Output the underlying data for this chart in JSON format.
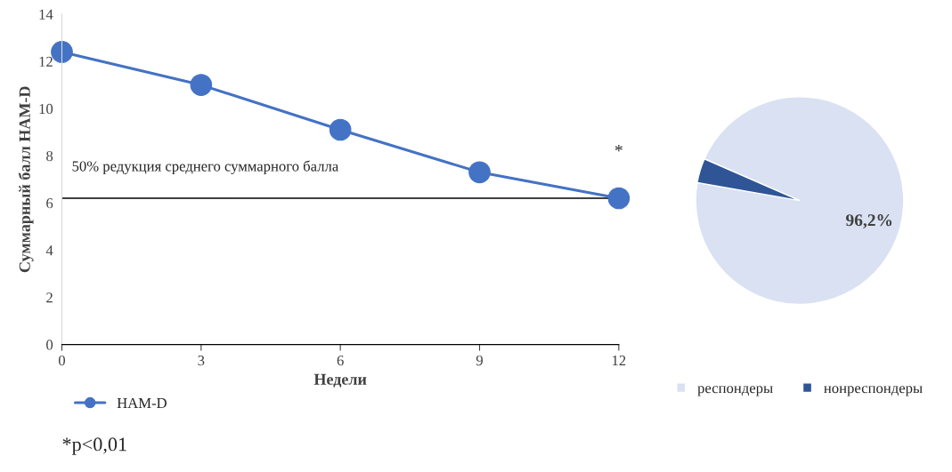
{
  "chart_data": [
    {
      "type": "line",
      "x": [
        0,
        3,
        6,
        9,
        12
      ],
      "xlabel": "Недели",
      "ylabel": "Суммарный балл HAM-D",
      "xlim": [
        0,
        12
      ],
      "xticks": [
        0,
        3,
        6,
        9,
        12
      ],
      "ylim": [
        0,
        14
      ],
      "yticks": [
        0,
        2,
        4,
        6,
        8,
        10,
        12,
        14
      ],
      "grid": false,
      "legend": "bottom left",
      "marker": "circle",
      "line_style": "solid",
      "series": [
        {
          "name": "HAM-D",
          "color": "#4472c4",
          "values": [
            12.4,
            11.0,
            9.1,
            7.3,
            6.2
          ]
        }
      ],
      "ref_lines": [
        {
          "axis": "y",
          "value": 6.2,
          "label": "50% редукция среднего суммарного балла",
          "color": "#000000"
        }
      ],
      "annotations": [
        "*",
        "*p<0,01"
      ]
    },
    {
      "type": "pie",
      "categories": [
        "респондеры",
        "нонреспондеры"
      ],
      "values": [
        96.2,
        3.8
      ],
      "colors": [
        "#d9e1f2",
        "#2f5597"
      ],
      "value_labels": [
        "96,2%",
        null
      ],
      "legend": "bottom"
    }
  ]
}
